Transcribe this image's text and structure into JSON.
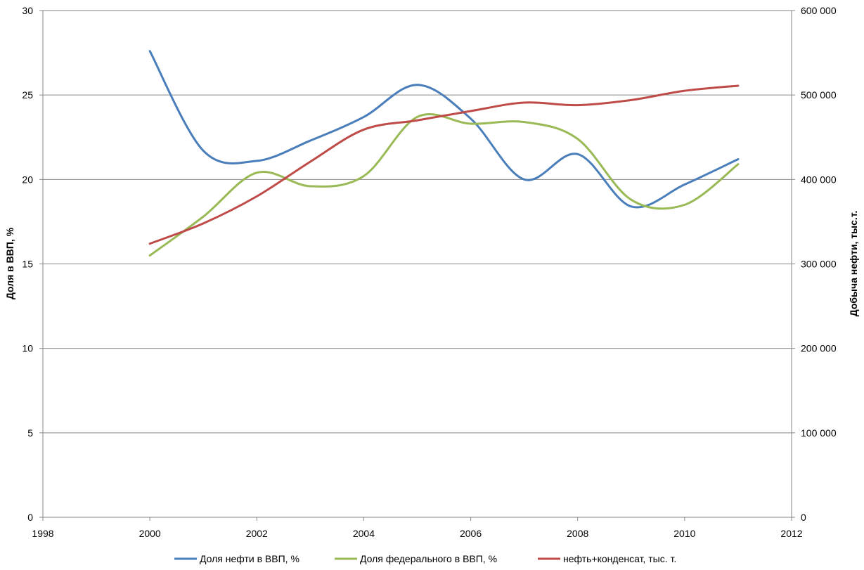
{
  "chart_data": {
    "type": "line",
    "title": "",
    "xlabel": "",
    "ylabel": "Доля в ВВП, %",
    "y2label": "Добыча нефти, тыс.т.",
    "xlim": [
      1998,
      2012
    ],
    "ylim": [
      0,
      30
    ],
    "y2lim": [
      0,
      600000
    ],
    "x_ticks": [
      1998,
      2000,
      2002,
      2004,
      2006,
      2008,
      2010,
      2012
    ],
    "x_tick_labels": [
      "1998",
      "2000",
      "2002",
      "2004",
      "2006",
      "2008",
      "2010",
      "2012"
    ],
    "y_ticks": [
      0,
      5,
      10,
      15,
      20,
      25,
      30
    ],
    "y_tick_labels": [
      "0",
      "5",
      "10",
      "15",
      "20",
      "25",
      "30"
    ],
    "y2_ticks": [
      0,
      100000,
      200000,
      300000,
      400000,
      500000,
      600000
    ],
    "y2_tick_labels": [
      "0",
      "100 000",
      "200 000",
      "300 000",
      "400 000",
      "500 000",
      "600 000"
    ],
    "grid": "horizontal",
    "legend_position": "bottom",
    "smooth": true,
    "x": [
      2000,
      2001,
      2002,
      2003,
      2004,
      2005,
      2006,
      2007,
      2008,
      2009,
      2010,
      2011
    ],
    "series": [
      {
        "name": "Доля нефти в ВВП, %",
        "axis": "left",
        "color": "#4A7EBB",
        "values": [
          27.6,
          21.7,
          21.1,
          22.3,
          23.7,
          25.6,
          23.6,
          20.0,
          21.5,
          18.4,
          19.7,
          21.2
        ]
      },
      {
        "name": "Доля федерального  в ВВП, %",
        "axis": "left",
        "color": "#98B954",
        "values": [
          15.5,
          17.8,
          20.4,
          19.6,
          20.2,
          23.7,
          23.3,
          23.4,
          22.4,
          18.8,
          18.5,
          20.9
        ]
      },
      {
        "name": "нефть+конденсат, тыс. т.",
        "axis": "right",
        "color": "#BE4B48",
        "values": [
          324000,
          348000,
          380000,
          421000,
          459000,
          470000,
          481000,
          491000,
          488000,
          494000,
          505000,
          511000
        ]
      }
    ]
  }
}
